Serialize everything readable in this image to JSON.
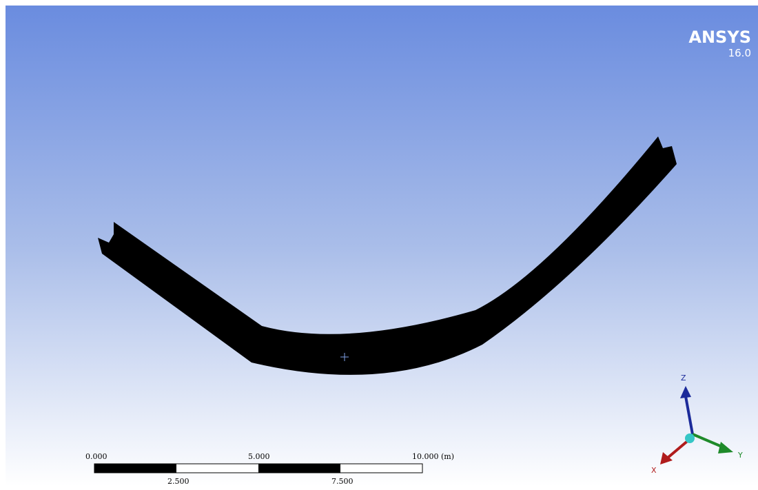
{
  "logo": {
    "brand": "ANSYS",
    "version": "16.0"
  },
  "scale_bar": {
    "top_labels": [
      "0.000",
      "5.000",
      "10.000 (m)"
    ],
    "bottom_labels": [
      "2.500",
      "7.500"
    ]
  },
  "triad": {
    "z": "Z",
    "y": "Y",
    "x": "X"
  }
}
